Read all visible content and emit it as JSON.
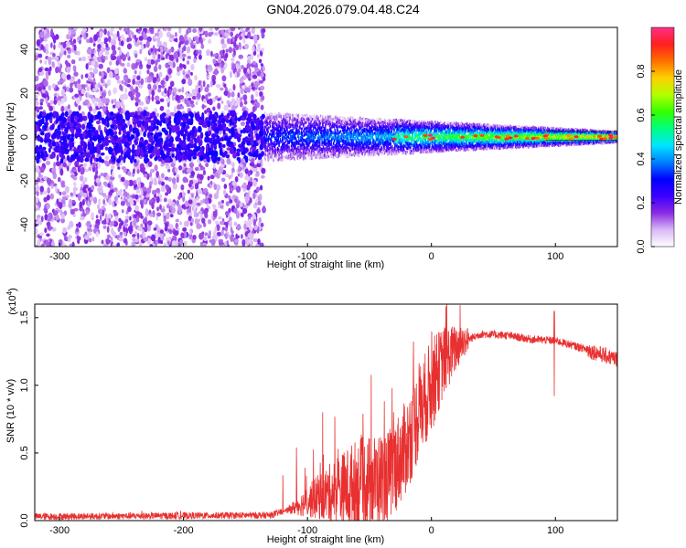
{
  "title": "GN04.2026.079.04.48.C24",
  "chart_data": [
    {
      "type": "heatmap",
      "xlabel": "Height of straight line (km)",
      "ylabel": "Frequency (Hz)",
      "xlim": [
        -320,
        150
      ],
      "ylim": [
        -50,
        50
      ],
      "xticks": [
        "-300",
        "-200",
        "-100",
        "0",
        "100"
      ],
      "yticks": [
        "-40",
        "-20",
        "0",
        "20",
        "40"
      ],
      "colorbar": {
        "label": "Normalized spectral amplitude",
        "ticks": [
          "0.0",
          "0.2",
          "0.4",
          "0.6",
          "0.8"
        ],
        "colors": [
          "#ffffff",
          "#d9b8f5",
          "#8a2be2",
          "#3b00ff",
          "#0000ff",
          "#0080ff",
          "#00e5ff",
          "#00ff80",
          "#33ff00",
          "#b3ff00",
          "#ffd000",
          "#ff7000",
          "#ff1f1f",
          "#ff2f8a"
        ]
      },
      "regions": [
        {
          "name": "diffuse noise",
          "x": [
            -320,
            -135
          ],
          "freq": [
            -50,
            50
          ],
          "amplitude": 0.15
        },
        {
          "name": "narrow band",
          "x": [
            -135,
            150
          ],
          "freq_center": 0,
          "amplitude_peak": 0.9
        }
      ]
    },
    {
      "type": "line",
      "xlabel": "Height of straight line (km)",
      "ylabel": "SNR (10 * v/v)",
      "multiplier": "(x10^4)",
      "multiplier_base": "(x10",
      "multiplier_exp": "4",
      "multiplier_close": ")",
      "xlim": [
        -320,
        150
      ],
      "ylim": [
        0,
        1.6
      ],
      "xticks": [
        "-300",
        "-200",
        "-100",
        "0",
        "100"
      ],
      "yticks": [
        "0.0",
        "0.5",
        "1.0",
        "1.5"
      ],
      "color": "#e83030",
      "profile": {
        "x": [
          -320,
          -130,
          -115,
          -90,
          -60,
          -35,
          -20,
          -10,
          0,
          10,
          25,
          40,
          60,
          80,
          100,
          120,
          140,
          150
        ],
        "y": [
          0.03,
          0.04,
          0.08,
          0.18,
          0.26,
          0.32,
          0.55,
          0.8,
          1.0,
          1.18,
          1.32,
          1.38,
          1.37,
          1.34,
          1.33,
          1.28,
          1.22,
          1.19
        ]
      },
      "spike": {
        "x": 99,
        "y_low": 0.92,
        "y_high": 1.55
      }
    }
  ]
}
